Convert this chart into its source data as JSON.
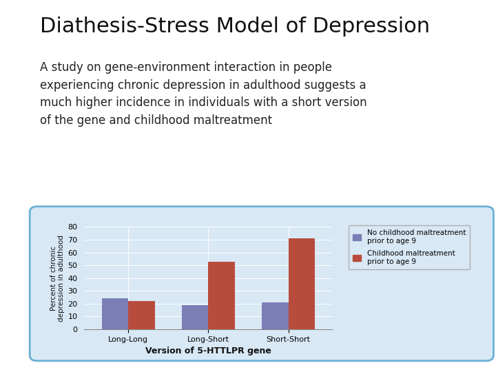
{
  "title": "Diathesis-Stress Model of Depression",
  "subtitle": "A study on gene-environment interaction in people\nexperiencing chronic depression in adulthood suggests a\nmuch higher incidence in individuals with a short version\nof the gene and childhood maltreatment",
  "categories": [
    "Long-Long",
    "Long-Short",
    "Short-Short"
  ],
  "no_maltreatment": [
    24,
    19,
    21
  ],
  "maltreatment": [
    22,
    53,
    71
  ],
  "bar_color_no": "#7b7db5",
  "bar_color_yes": "#b84c3c",
  "xlabel": "Version of 5-HTTLPR gene",
  "ylabel": "Percent of chronic\ndepression in adulthood",
  "ylim": [
    0,
    80
  ],
  "yticks": [
    0,
    10,
    20,
    30,
    40,
    50,
    60,
    70,
    80
  ],
  "legend_no": "No childhood maltreatment\nprior to age 9",
  "legend_yes": "Childhood maltreatment\nprior to age 9",
  "bg_color": "#ffffff",
  "chart_bg": "#d8e8f4",
  "border_color": "#6aafd4",
  "title_fontsize": 22,
  "subtitle_fontsize": 12,
  "axis_fontsize": 8,
  "xlabel_fontsize": 9,
  "ylabel_fontsize": 7.5
}
